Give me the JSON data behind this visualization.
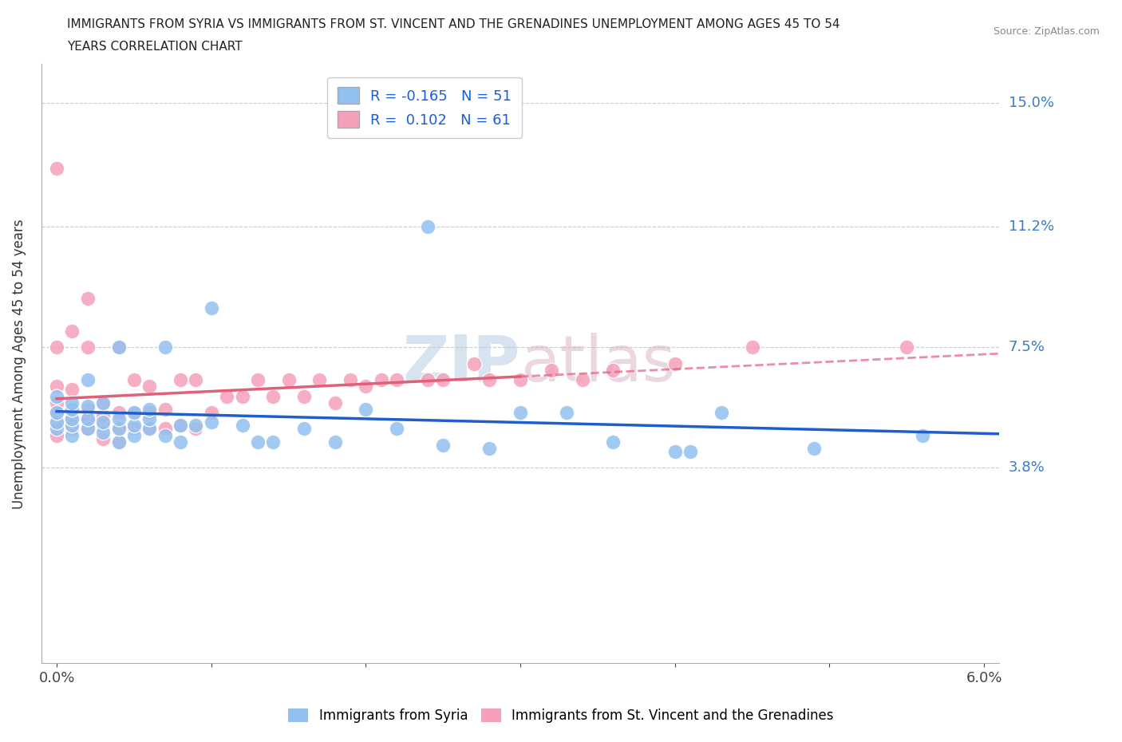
{
  "title_line1": "IMMIGRANTS FROM SYRIA VS IMMIGRANTS FROM ST. VINCENT AND THE GRENADINES UNEMPLOYMENT AMONG AGES 45 TO 54",
  "title_line2": "YEARS CORRELATION CHART",
  "source_text": "Source: ZipAtlas.com",
  "ylabel": "Unemployment Among Ages 45 to 54 years",
  "xlim": [
    -0.001,
    0.061
  ],
  "ylim": [
    -0.022,
    0.162
  ],
  "xtick_positions": [
    0.0,
    0.01,
    0.02,
    0.03,
    0.04,
    0.05,
    0.06
  ],
  "xticklabels": [
    "0.0%",
    "",
    "",
    "",
    "",
    "",
    "6.0%"
  ],
  "ytick_positions": [
    0.038,
    0.075,
    0.112,
    0.15
  ],
  "ytick_labels": [
    "3.8%",
    "7.5%",
    "11.2%",
    "15.0%"
  ],
  "legend_r_syria": "-0.165",
  "legend_n_syria": "51",
  "legend_r_svg": "0.102",
  "legend_n_svg": "61",
  "color_syria": "#92c0f0",
  "color_svg": "#f5a0b8",
  "trendline_syria_color": "#1f5fcc",
  "trendline_svg_color": "#e0607a",
  "watermark": "ZIPatlas",
  "syria_x": [
    0.0,
    0.0,
    0.0,
    0.0,
    0.001,
    0.001,
    0.001,
    0.001,
    0.001,
    0.002,
    0.002,
    0.002,
    0.002,
    0.003,
    0.003,
    0.003,
    0.004,
    0.004,
    0.004,
    0.004,
    0.005,
    0.005,
    0.005,
    0.006,
    0.006,
    0.006,
    0.007,
    0.007,
    0.008,
    0.008,
    0.009,
    0.01,
    0.01,
    0.012,
    0.013,
    0.014,
    0.016,
    0.018,
    0.02,
    0.022,
    0.024,
    0.025,
    0.028,
    0.03,
    0.033,
    0.036,
    0.04,
    0.041,
    0.043,
    0.049,
    0.056
  ],
  "syria_y": [
    0.05,
    0.052,
    0.055,
    0.06,
    0.048,
    0.051,
    0.053,
    0.056,
    0.058,
    0.05,
    0.053,
    0.057,
    0.065,
    0.049,
    0.052,
    0.058,
    0.046,
    0.05,
    0.053,
    0.075,
    0.048,
    0.051,
    0.055,
    0.05,
    0.053,
    0.056,
    0.048,
    0.075,
    0.046,
    0.051,
    0.051,
    0.087,
    0.052,
    0.051,
    0.046,
    0.046,
    0.05,
    0.046,
    0.056,
    0.05,
    0.112,
    0.045,
    0.044,
    0.055,
    0.055,
    0.046,
    0.043,
    0.043,
    0.055,
    0.044,
    0.048
  ],
  "svg_x": [
    0.0,
    0.0,
    0.0,
    0.0,
    0.0,
    0.0,
    0.0,
    0.001,
    0.001,
    0.001,
    0.001,
    0.001,
    0.002,
    0.002,
    0.002,
    0.002,
    0.002,
    0.003,
    0.003,
    0.003,
    0.003,
    0.004,
    0.004,
    0.004,
    0.004,
    0.005,
    0.005,
    0.005,
    0.006,
    0.006,
    0.006,
    0.007,
    0.007,
    0.008,
    0.008,
    0.009,
    0.009,
    0.01,
    0.011,
    0.012,
    0.013,
    0.014,
    0.015,
    0.016,
    0.017,
    0.018,
    0.019,
    0.02,
    0.021,
    0.022,
    0.024,
    0.025,
    0.027,
    0.028,
    0.03,
    0.032,
    0.034,
    0.036,
    0.04,
    0.045,
    0.055
  ],
  "svg_y": [
    0.048,
    0.052,
    0.055,
    0.058,
    0.063,
    0.075,
    0.13,
    0.05,
    0.053,
    0.056,
    0.062,
    0.08,
    0.05,
    0.053,
    0.056,
    0.075,
    0.09,
    0.047,
    0.051,
    0.054,
    0.058,
    0.046,
    0.05,
    0.055,
    0.075,
    0.05,
    0.055,
    0.065,
    0.05,
    0.055,
    0.063,
    0.05,
    0.056,
    0.051,
    0.065,
    0.05,
    0.065,
    0.055,
    0.06,
    0.06,
    0.065,
    0.06,
    0.065,
    0.06,
    0.065,
    0.058,
    0.065,
    0.063,
    0.065,
    0.065,
    0.065,
    0.065,
    0.07,
    0.065,
    0.065,
    0.068,
    0.065,
    0.068,
    0.07,
    0.075,
    0.075
  ]
}
